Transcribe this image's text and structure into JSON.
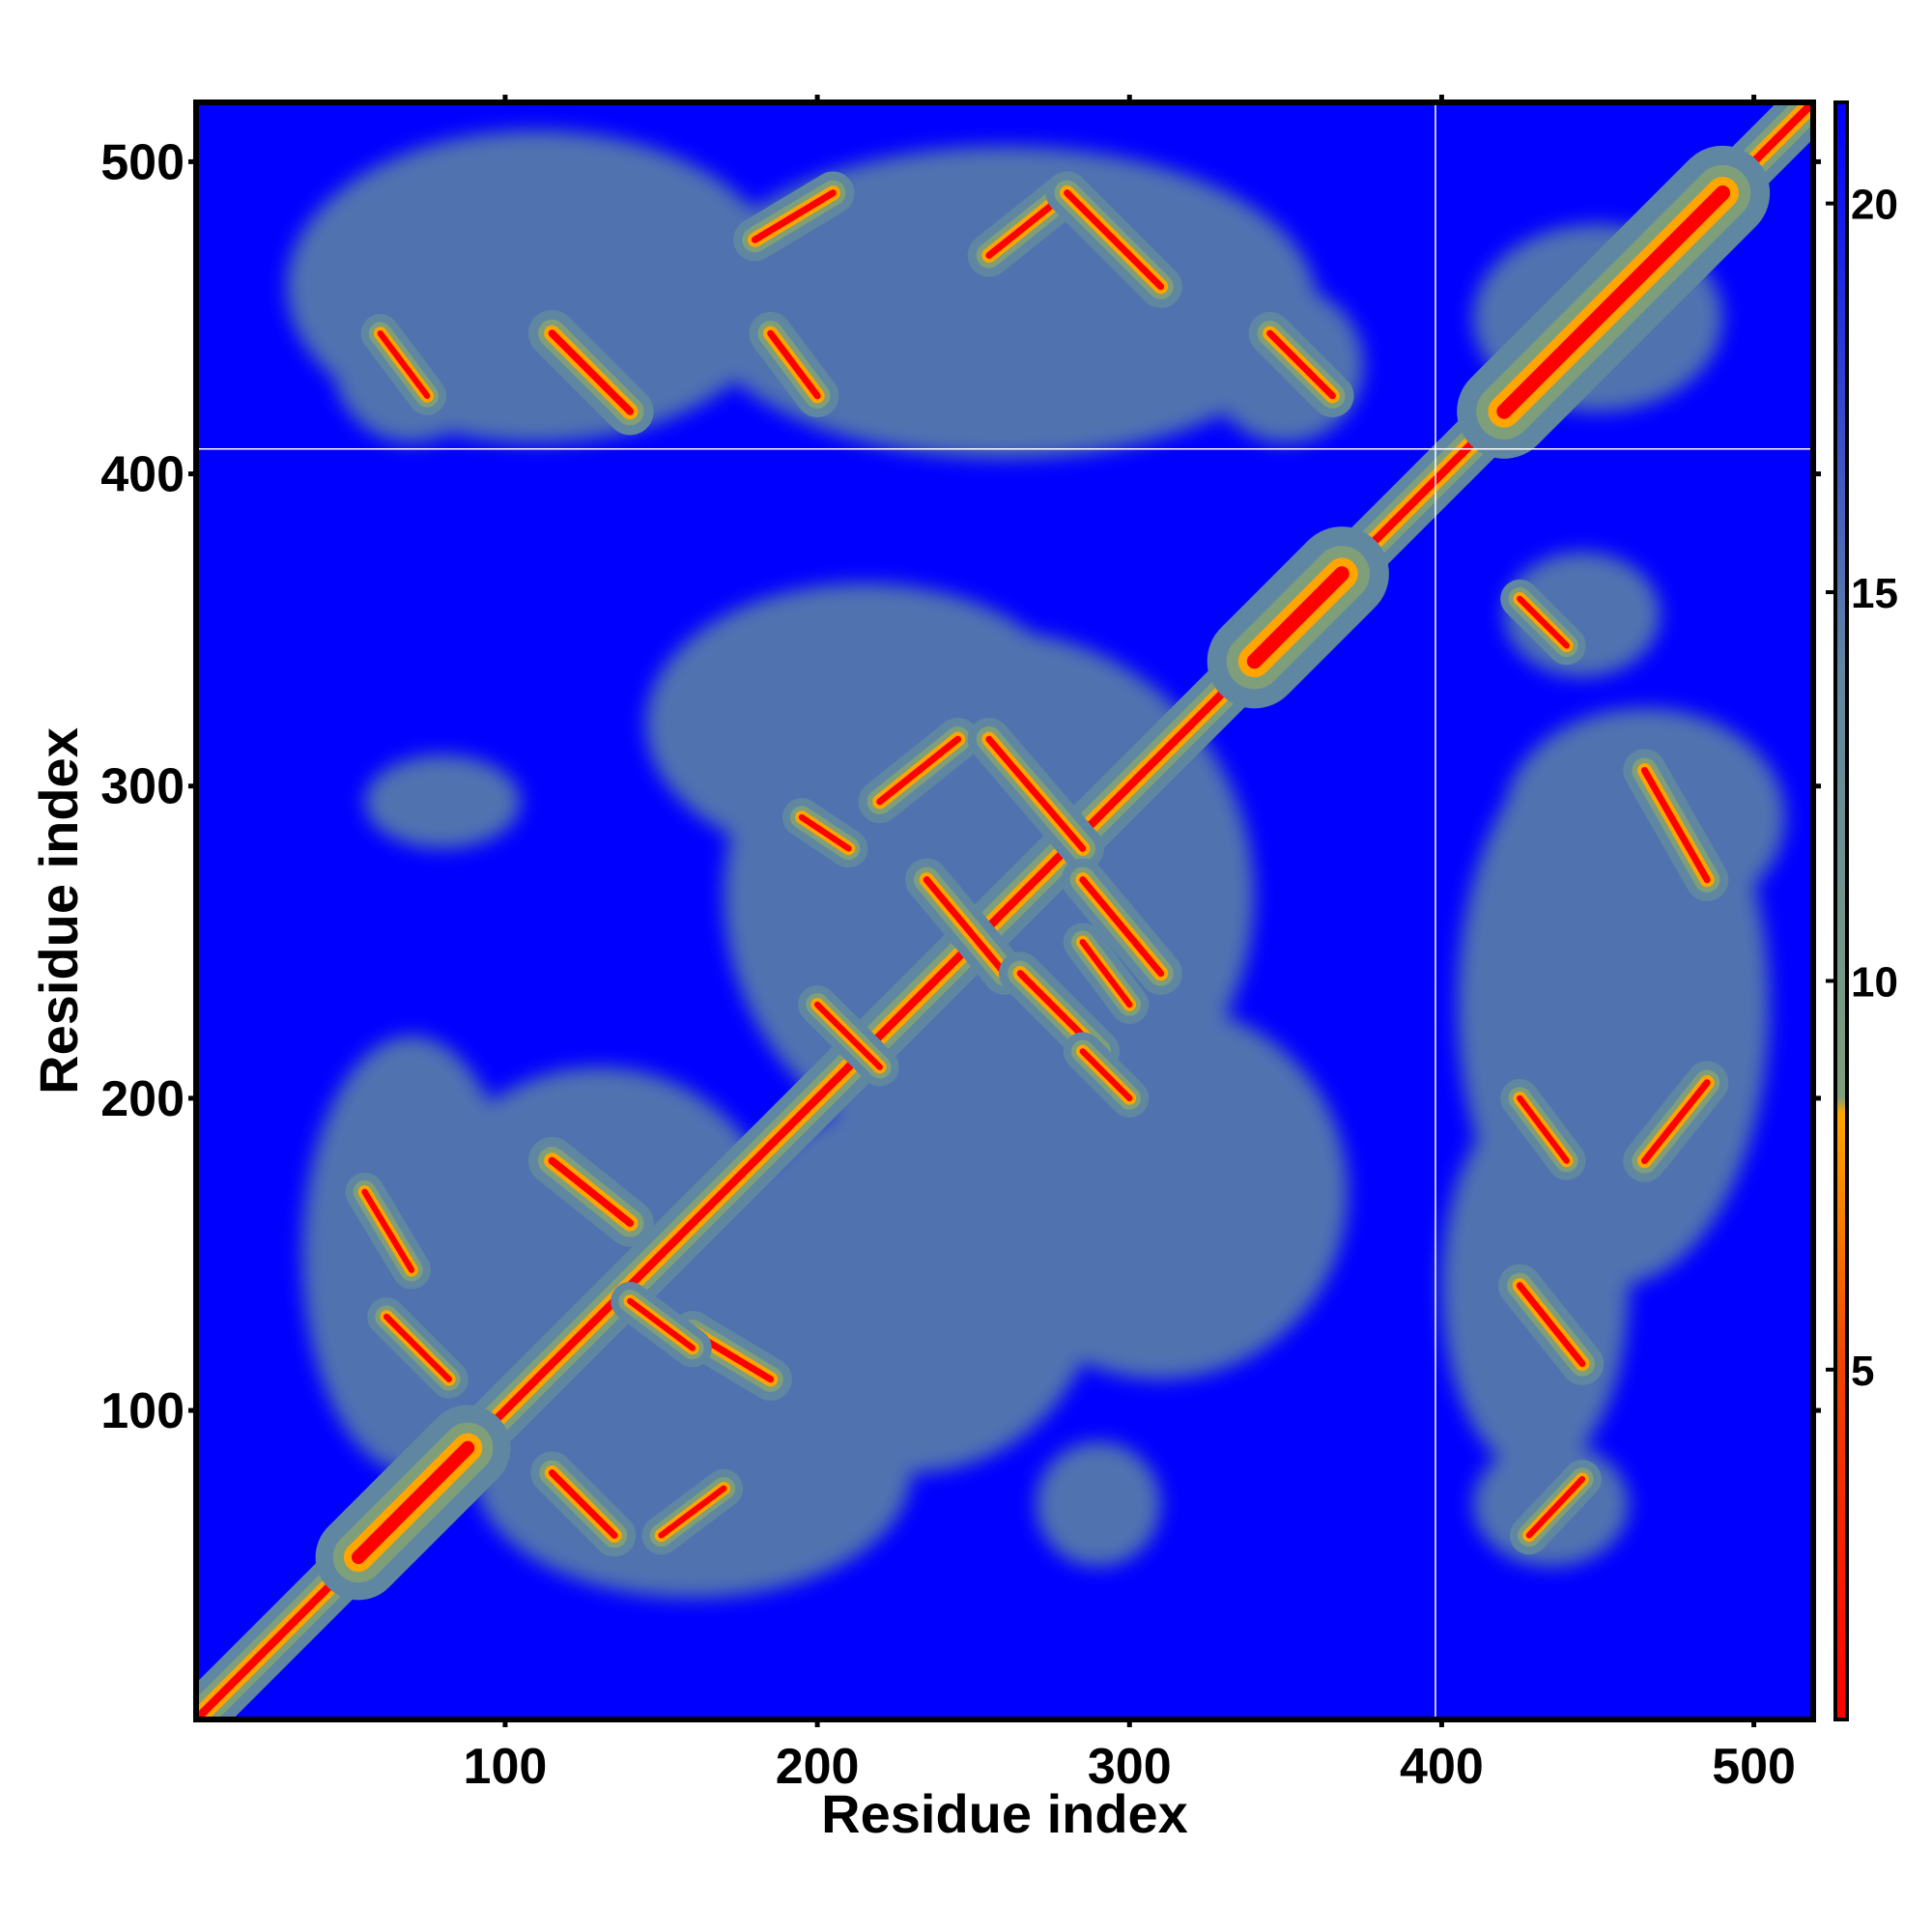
{
  "chart_data": {
    "type": "heatmap",
    "title": "",
    "xlabel": "Residue index",
    "ylabel": "Residue index",
    "xlim": [
      1,
      519
    ],
    "ylim": [
      1,
      519
    ],
    "x_ticks": [
      100,
      200,
      300,
      400,
      500
    ],
    "y_ticks": [
      100,
      200,
      300,
      400,
      500
    ],
    "colorbar": {
      "ticks": [
        5,
        10,
        15,
        20
      ],
      "range": [
        0.5,
        21.3
      ],
      "stops": [
        {
          "value": 0.5,
          "color": "#ff0000"
        },
        {
          "value": 5.0,
          "color": "#ee4400"
        },
        {
          "value": 8.3,
          "color": "#ffa500"
        },
        {
          "value": 8.5,
          "color": "#7f9f7a"
        },
        {
          "value": 14.0,
          "color": "#5f87a2"
        },
        {
          "value": 21.3,
          "color": "#0000ff"
        }
      ]
    },
    "background_value": 21.3,
    "diagonal_value": 0.5,
    "guide_lines": {
      "x": 398,
      "y": 408
    },
    "contact_segments": [
      {
        "x1": 1,
        "y1": 1,
        "x2": 519,
        "y2": 519,
        "w": 24
      },
      {
        "x1": 340,
        "y1": 340,
        "x2": 368,
        "y2": 368,
        "w": 44
      },
      {
        "x1": 420,
        "y1": 420,
        "x2": 490,
        "y2": 490,
        "w": 44
      },
      {
        "x1": 53,
        "y1": 53,
        "x2": 88,
        "y2": 88,
        "w": 40
      },
      {
        "x1": 60,
        "y1": 445,
        "x2": 75,
        "y2": 425,
        "w": 18
      },
      {
        "x1": 115,
        "y1": 445,
        "x2": 140,
        "y2": 420,
        "w": 22
      },
      {
        "x1": 180,
        "y1": 475,
        "x2": 205,
        "y2": 490,
        "w": 20
      },
      {
        "x1": 185,
        "y1": 445,
        "x2": 200,
        "y2": 425,
        "w": 20
      },
      {
        "x1": 255,
        "y1": 470,
        "x2": 280,
        "y2": 490,
        "w": 20
      },
      {
        "x1": 280,
        "y1": 490,
        "x2": 310,
        "y2": 460,
        "w": 20
      },
      {
        "x1": 345,
        "y1": 445,
        "x2": 365,
        "y2": 425,
        "w": 20
      },
      {
        "x1": 220,
        "y1": 295,
        "x2": 245,
        "y2": 315,
        "w": 20
      },
      {
        "x1": 195,
        "y1": 290,
        "x2": 210,
        "y2": 280,
        "w": 18
      },
      {
        "x1": 255,
        "y1": 315,
        "x2": 285,
        "y2": 280,
        "w": 20
      },
      {
        "x1": 285,
        "y1": 270,
        "x2": 310,
        "y2": 240,
        "w": 20
      },
      {
        "x1": 235,
        "y1": 270,
        "x2": 260,
        "y2": 240,
        "w": 20
      },
      {
        "x1": 265,
        "y1": 240,
        "x2": 290,
        "y2": 215,
        "w": 20
      },
      {
        "x1": 285,
        "y1": 250,
        "x2": 300,
        "y2": 230,
        "w": 18
      },
      {
        "x1": 285,
        "y1": 215,
        "x2": 300,
        "y2": 200,
        "w": 18
      },
      {
        "x1": 200,
        "y1": 230,
        "x2": 220,
        "y2": 210,
        "w": 18
      },
      {
        "x1": 115,
        "y1": 180,
        "x2": 140,
        "y2": 160,
        "w": 22
      },
      {
        "x1": 160,
        "y1": 125,
        "x2": 185,
        "y2": 110,
        "w": 20
      },
      {
        "x1": 140,
        "y1": 135,
        "x2": 160,
        "y2": 120,
        "w": 18
      },
      {
        "x1": 55,
        "y1": 170,
        "x2": 70,
        "y2": 145,
        "w": 18
      },
      {
        "x1": 62,
        "y1": 130,
        "x2": 82,
        "y2": 110,
        "w": 18
      },
      {
        "x1": 115,
        "y1": 80,
        "x2": 135,
        "y2": 60,
        "w": 20
      },
      {
        "x1": 150,
        "y1": 60,
        "x2": 170,
        "y2": 75,
        "w": 18
      },
      {
        "x1": 425,
        "y1": 360,
        "x2": 440,
        "y2": 345,
        "w": 18
      },
      {
        "x1": 465,
        "y1": 305,
        "x2": 485,
        "y2": 270,
        "w": 20
      },
      {
        "x1": 425,
        "y1": 200,
        "x2": 440,
        "y2": 180,
        "w": 18
      },
      {
        "x1": 465,
        "y1": 180,
        "x2": 485,
        "y2": 205,
        "w": 20
      },
      {
        "x1": 425,
        "y1": 140,
        "x2": 445,
        "y2": 115,
        "w": 20
      },
      {
        "x1": 428,
        "y1": 60,
        "x2": 445,
        "y2": 78,
        "w": 18
      }
    ],
    "haze_blobs": [
      {
        "x": 110,
        "y": 460,
        "rx": 80,
        "ry": 50
      },
      {
        "x": 260,
        "y": 455,
        "rx": 100,
        "ry": 50
      },
      {
        "x": 350,
        "y": 435,
        "rx": 25,
        "ry": 25
      },
      {
        "x": 70,
        "y": 435,
        "rx": 25,
        "ry": 25
      },
      {
        "x": 255,
        "y": 265,
        "rx": 85,
        "ry": 85
      },
      {
        "x": 215,
        "y": 320,
        "rx": 70,
        "ry": 45
      },
      {
        "x": 130,
        "y": 150,
        "rx": 60,
        "ry": 60
      },
      {
        "x": 70,
        "y": 150,
        "rx": 35,
        "ry": 70
      },
      {
        "x": 160,
        "y": 80,
        "rx": 70,
        "ry": 40
      },
      {
        "x": 230,
        "y": 140,
        "rx": 60,
        "ry": 60
      },
      {
        "x": 310,
        "y": 170,
        "rx": 60,
        "ry": 60
      },
      {
        "x": 455,
        "y": 230,
        "rx": 50,
        "ry": 90
      },
      {
        "x": 465,
        "y": 290,
        "rx": 45,
        "ry": 35
      },
      {
        "x": 445,
        "y": 355,
        "rx": 25,
        "ry": 20
      },
      {
        "x": 430,
        "y": 140,
        "rx": 30,
        "ry": 60
      },
      {
        "x": 435,
        "y": 70,
        "rx": 25,
        "ry": 20
      },
      {
        "x": 80,
        "y": 295,
        "rx": 25,
        "ry": 15
      },
      {
        "x": 290,
        "y": 70,
        "rx": 20,
        "ry": 20
      },
      {
        "x": 450,
        "y": 450,
        "rx": 40,
        "ry": 30
      }
    ]
  }
}
